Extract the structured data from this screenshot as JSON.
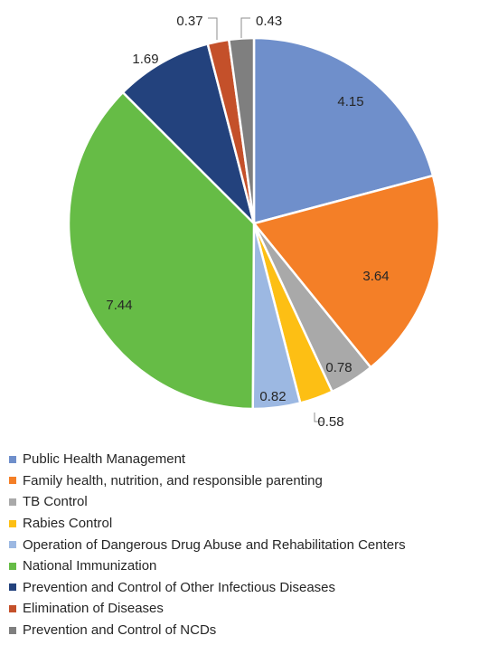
{
  "chart_data": {
    "type": "pie",
    "title": "",
    "legend_position": "bottom",
    "start_angle_deg": 0,
    "direction": "clockwise",
    "slices": [
      {
        "name": "Public Health Management",
        "value": 4.15,
        "label": "4.15",
        "color": "#6f8fcb"
      },
      {
        "name": "Family health, nutrition, and responsible parenting",
        "value": 3.64,
        "label": "3.64",
        "color": "#f47f27"
      },
      {
        "name": "TB Control",
        "value": 0.78,
        "label": "0.78",
        "color": "#a9a9a9"
      },
      {
        "name": "Rabies Control",
        "value": 0.58,
        "label": "0.58",
        "color": "#fdbf14"
      },
      {
        "name": "Operation of Dangerous Drug Abuse and Rehabilitation Centers",
        "value": 0.82,
        "label": "0.82",
        "color": "#9cb8e2"
      },
      {
        "name": "National Immunization",
        "value": 7.44,
        "label": "7.44",
        "color": "#66bc46"
      },
      {
        "name": "Prevention and Control of Other Infectious Diseases",
        "value": 1.69,
        "label": "1.69",
        "color": "#23427d"
      },
      {
        "name": "Elimination of Diseases",
        "value": 0.37,
        "label": "0.37",
        "color": "#c4502a"
      },
      {
        "name": "Prevention and Control of NCDs",
        "value": 0.43,
        "label": "0.43",
        "color": "#7f7f7f"
      }
    ]
  }
}
